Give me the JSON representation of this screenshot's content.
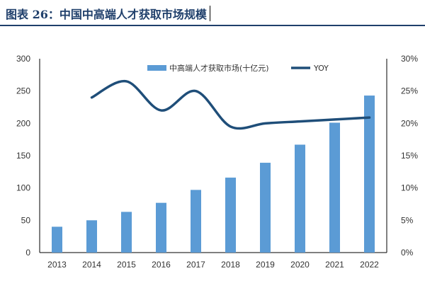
{
  "title": "图表 26：中国中高端人才获取市场规模",
  "chart_data": {
    "type": "bar",
    "categories": [
      "2013",
      "2014",
      "2015",
      "2016",
      "2017",
      "2018",
      "2019",
      "2020",
      "2021",
      "2022"
    ],
    "series": [
      {
        "name": "中高端人才获取市场(十亿元)",
        "type": "bar",
        "axis": "left",
        "color": "#5b9bd5",
        "values": [
          40,
          50,
          63,
          77,
          97,
          116,
          139,
          167,
          201,
          243
        ]
      },
      {
        "name": "YOY",
        "type": "line",
        "axis": "right",
        "color": "#1f4e79",
        "smooth": true,
        "values": [
          null,
          24.0,
          26.5,
          22.0,
          25.0,
          19.5,
          20.0,
          20.3,
          20.6,
          20.9
        ]
      }
    ],
    "y_left": {
      "lim": [
        0,
        300
      ],
      "ticks": [
        "0",
        "50",
        "100",
        "150",
        "200",
        "250",
        "300"
      ]
    },
    "y_right": {
      "lim": [
        0,
        30
      ],
      "ticks": [
        "0%",
        "5%",
        "10%",
        "15%",
        "20%",
        "25%",
        "30%"
      ]
    },
    "legend_position": "top",
    "grid": false
  }
}
